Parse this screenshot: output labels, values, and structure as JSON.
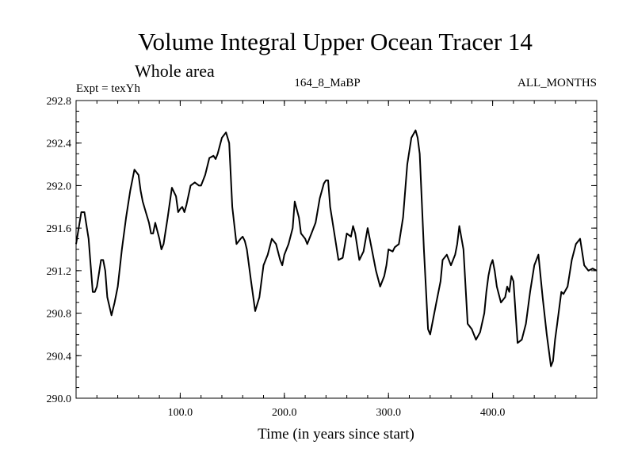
{
  "chart_data": {
    "type": "line",
    "title": "Volume Integral Upper Ocean Tracer 14",
    "subtitle": "Whole area",
    "experiment_label": "Expt = texYh",
    "run_label": "164_8_MaBP",
    "period_label": "ALL_MONTHS",
    "xlabel": "Time (in years since start)",
    "ylabel": "",
    "xlim": [
      0,
      500
    ],
    "ylim": [
      290.0,
      292.8
    ],
    "x_ticks": [
      100,
      200,
      300,
      400
    ],
    "x_tick_labels": [
      "100.0",
      "200.0",
      "300.0",
      "400.0"
    ],
    "y_ticks": [
      290.0,
      290.4,
      290.8,
      291.2,
      291.6,
      292.0,
      292.4,
      292.8
    ],
    "y_tick_labels": [
      "290.0",
      "290.4",
      "290.8",
      "291.2",
      "291.6",
      "292.0",
      "292.4",
      "292.8"
    ],
    "grid": false,
    "legend": "none",
    "line_color": "#000000",
    "series": [
      {
        "x": [
          0,
          5,
          8,
          12,
          16,
          18,
          20,
          24,
          26,
          28,
          30,
          34,
          37,
          40,
          44,
          48,
          52,
          56,
          60,
          62,
          64,
          67,
          70,
          72,
          74,
          76,
          80,
          82,
          84,
          88,
          92,
          96,
          98,
          100,
          102,
          104,
          106,
          110,
          114,
          118,
          120,
          124,
          128,
          132,
          134,
          136,
          140,
          144,
          147,
          150,
          154,
          158,
          160,
          162,
          164,
          168,
          172,
          176,
          178,
          180,
          184,
          188,
          192,
          196,
          198,
          200,
          204,
          208,
          210,
          214,
          216,
          220,
          222,
          224,
          226,
          230,
          234,
          238,
          240,
          242,
          244,
          248,
          252,
          256,
          260,
          264,
          266,
          268,
          272,
          276,
          280,
          284,
          288,
          292,
          296,
          298,
          300,
          304,
          306,
          310,
          314,
          318,
          322,
          326,
          328,
          330,
          334,
          338,
          340,
          342,
          346,
          350,
          352,
          356,
          360,
          362,
          364,
          366,
          368,
          372,
          376,
          380,
          384,
          388,
          392,
          394,
          396,
          398,
          400,
          402,
          404,
          408,
          412,
          414,
          416,
          418,
          420,
          424,
          428,
          432,
          436,
          440,
          444,
          448,
          452,
          456,
          458,
          460,
          462,
          466,
          468,
          472,
          476,
          480,
          484,
          488,
          492,
          496,
          500
        ],
        "y": [
          291.45,
          291.75,
          291.75,
          291.5,
          291.0,
          291.0,
          291.05,
          291.3,
          291.3,
          291.2,
          290.95,
          290.78,
          290.9,
          291.05,
          291.4,
          291.7,
          291.95,
          292.15,
          292.1,
          291.95,
          291.85,
          291.75,
          291.65,
          291.55,
          291.55,
          291.65,
          291.5,
          291.4,
          291.45,
          291.7,
          291.98,
          291.9,
          291.75,
          291.78,
          291.8,
          291.75,
          291.82,
          292.0,
          292.03,
          292.0,
          292.0,
          292.1,
          292.26,
          292.28,
          292.25,
          292.3,
          292.45,
          292.5,
          292.4,
          291.8,
          291.45,
          291.5,
          291.52,
          291.48,
          291.4,
          291.1,
          290.82,
          290.95,
          291.1,
          291.25,
          291.35,
          291.5,
          291.45,
          291.3,
          291.25,
          291.35,
          291.45,
          291.6,
          291.85,
          291.7,
          291.55,
          291.5,
          291.45,
          291.5,
          291.55,
          291.65,
          291.88,
          292.02,
          292.05,
          292.05,
          291.8,
          291.55,
          291.3,
          291.32,
          291.55,
          291.52,
          291.62,
          291.55,
          291.3,
          291.38,
          291.6,
          291.4,
          291.2,
          291.05,
          291.15,
          291.25,
          291.4,
          291.38,
          291.42,
          291.45,
          291.7,
          292.2,
          292.45,
          292.52,
          292.45,
          292.3,
          291.4,
          290.65,
          290.6,
          290.7,
          290.9,
          291.1,
          291.3,
          291.35,
          291.25,
          291.3,
          291.35,
          291.45,
          291.62,
          291.4,
          290.7,
          290.65,
          290.55,
          290.62,
          290.8,
          291.0,
          291.15,
          291.25,
          291.3,
          291.2,
          291.05,
          290.9,
          290.95,
          291.05,
          291.0,
          291.15,
          291.1,
          290.52,
          290.55,
          290.7,
          291.0,
          291.25,
          291.35,
          290.95,
          290.6,
          290.3,
          290.35,
          290.55,
          290.7,
          291.0,
          290.98,
          291.05,
          291.3,
          291.45,
          291.5,
          291.25,
          291.2,
          291.22,
          291.2
        ]
      }
    ]
  }
}
